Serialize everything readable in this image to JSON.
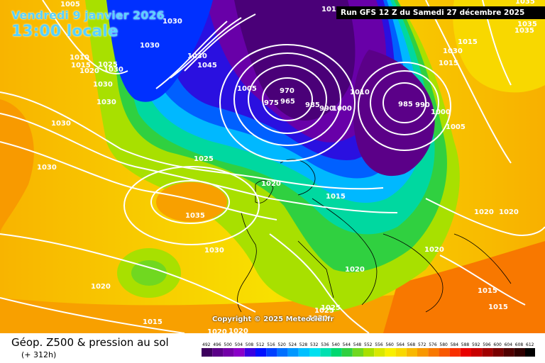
{
  "header": {
    "date": "Vendredi 9 janvier 2026",
    "local_time": "13:00 locale",
    "run": "Run GFS 12 Z du Samedi 27 décembre 2025"
  },
  "copyright": "Copyright © 2025 Meteociel.fr",
  "footer": {
    "title": "Géop. Z500 & pression au sol",
    "subtitle": "(+ 312h)"
  },
  "colorscale": {
    "ticks": [
      "492",
      "496",
      "500",
      "504",
      "508",
      "512",
      "516",
      "520",
      "524",
      "528",
      "532",
      "536",
      "540",
      "544",
      "548",
      "552",
      "556",
      "560",
      "564",
      "568",
      "572",
      "576",
      "580",
      "584",
      "588",
      "592",
      "596",
      "600",
      "604",
      "608",
      "612"
    ],
    "colors": [
      "#3d005e",
      "#5b0088",
      "#7300a8",
      "#8a00c8",
      "#3a00e0",
      "#0010ff",
      "#0040ff",
      "#0070ff",
      "#0098ff",
      "#00c0ff",
      "#00e0f0",
      "#00e0b0",
      "#00d870",
      "#30d040",
      "#70d820",
      "#a8e000",
      "#d8e800",
      "#f8f000",
      "#f8d800",
      "#f8b800",
      "#f89800",
      "#f87800",
      "#f85800",
      "#f83000",
      "#e80000",
      "#c80000",
      "#a00000",
      "#780000",
      "#500000",
      "#300000",
      "#000000"
    ]
  },
  "pressure_labels": [
    {
      "text": "1005"
    },
    {
      "text": "1030"
    },
    {
      "text": "1030"
    },
    {
      "text": "1035"
    },
    {
      "text": "1015"
    },
    {
      "text": "1010"
    },
    {
      "text": "1020"
    },
    {
      "text": "1025"
    },
    {
      "text": "1030"
    },
    {
      "text": "1045"
    },
    {
      "text": "1030"
    },
    {
      "text": "1030"
    },
    {
      "text": "1005"
    },
    {
      "text": "970"
    },
    {
      "text": "975"
    },
    {
      "text": "965"
    },
    {
      "text": "985"
    },
    {
      "text": "990"
    },
    {
      "text": "1000"
    },
    {
      "text": "1010"
    },
    {
      "text": "985"
    },
    {
      "text": "990"
    },
    {
      "text": "1000"
    },
    {
      "text": "1005"
    },
    {
      "text": "1030"
    },
    {
      "text": "1035"
    },
    {
      "text": "1025"
    },
    {
      "text": "1020"
    },
    {
      "text": "1035"
    },
    {
      "text": "1015"
    },
    {
      "text": "1030"
    },
    {
      "text": "1020"
    },
    {
      "text": "1015"
    },
    {
      "text": "1030"
    },
    {
      "text": "1020"
    },
    {
      "text": "1020"
    },
    {
      "text": "1015"
    },
    {
      "text": "1025"
    },
    {
      "text": "1020"
    },
    {
      "text": "1020"
    },
    {
      "text": "1015"
    },
    {
      "text": "1015"
    },
    {
      "text": "1020"
    },
    {
      "text": "1030"
    },
    {
      "text": "1025"
    },
    {
      "text": "1015"
    },
    {
      "text": "1035"
    },
    {
      "text": "1030"
    },
    {
      "text": "1020"
    },
    {
      "text": "1020"
    },
    {
      "text": "1015"
    }
  ]
}
